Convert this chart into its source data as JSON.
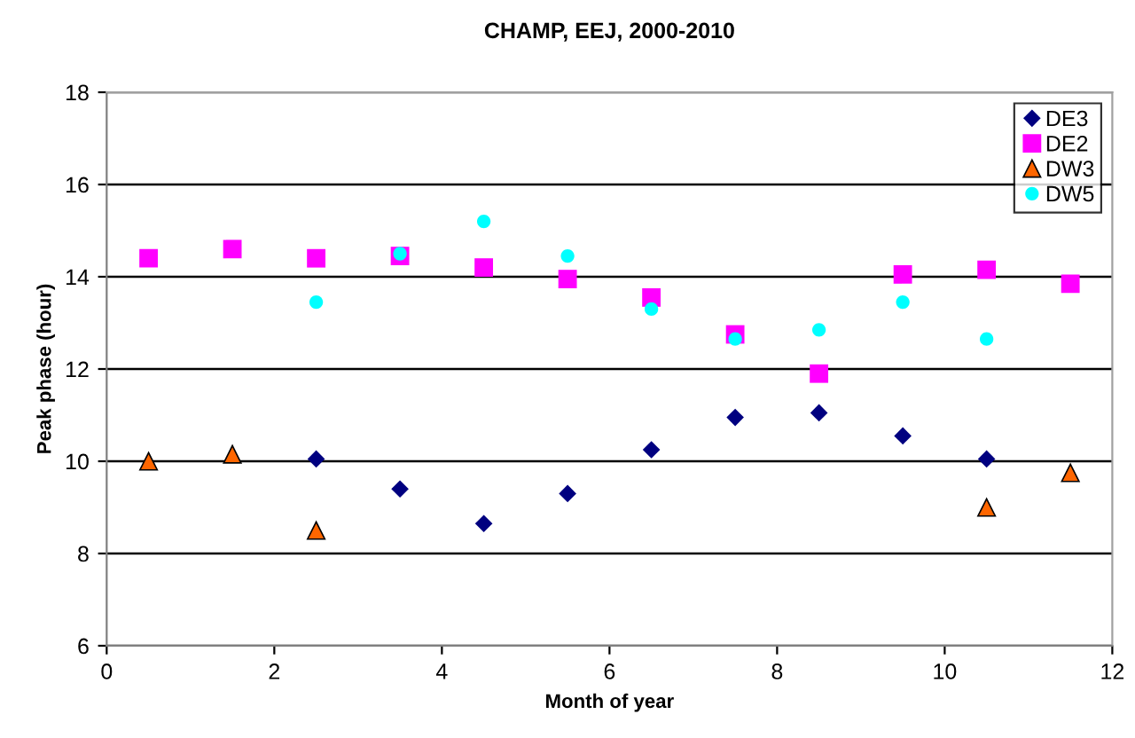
{
  "chart_data": {
    "type": "scatter",
    "title": "CHAMP, EEJ, 2000-2010",
    "xlabel": "Month of year",
    "ylabel": "Peak phase (hour)",
    "xlim": [
      0,
      12
    ],
    "xticks": [
      0,
      2,
      4,
      6,
      8,
      10,
      12
    ],
    "ylim": [
      6,
      18
    ],
    "yticks": [
      6,
      8,
      10,
      12,
      14,
      16,
      18
    ],
    "grid": "y",
    "legend": "top right",
    "series": [
      {
        "name": "DE3",
        "color": "#000080",
        "marker": "diamond",
        "x": [
          2.5,
          3.5,
          4.5,
          5.5,
          6.5,
          7.5,
          8.5,
          9.5,
          10.5
        ],
        "values": [
          10.05,
          9.4,
          8.65,
          9.3,
          10.25,
          10.95,
          11.05,
          10.55,
          10.05
        ]
      },
      {
        "name": "DE2",
        "color": "#ff00ff",
        "marker": "square",
        "x": [
          0.5,
          1.5,
          2.5,
          3.5,
          4.5,
          5.5,
          6.5,
          7.5,
          8.5,
          9.5,
          10.5,
          11.5
        ],
        "values": [
          14.4,
          14.6,
          14.4,
          14.45,
          14.2,
          13.95,
          13.55,
          12.75,
          11.9,
          14.05,
          14.15,
          13.85
        ]
      },
      {
        "name": "DW3",
        "color": "#ff6600",
        "marker": "triangle",
        "x": [
          0.5,
          1.5,
          2.5,
          10.5,
          11.5
        ],
        "values": [
          10.0,
          10.15,
          8.5,
          9.0,
          9.75
        ]
      },
      {
        "name": "DW5",
        "color": "#00ffff",
        "marker": "circle",
        "x": [
          2.5,
          3.5,
          4.5,
          5.5,
          6.5,
          7.5,
          8.5,
          9.5,
          10.5
        ],
        "values": [
          13.45,
          14.5,
          15.2,
          14.45,
          13.3,
          12.65,
          12.85,
          13.45,
          12.65
        ]
      }
    ]
  }
}
